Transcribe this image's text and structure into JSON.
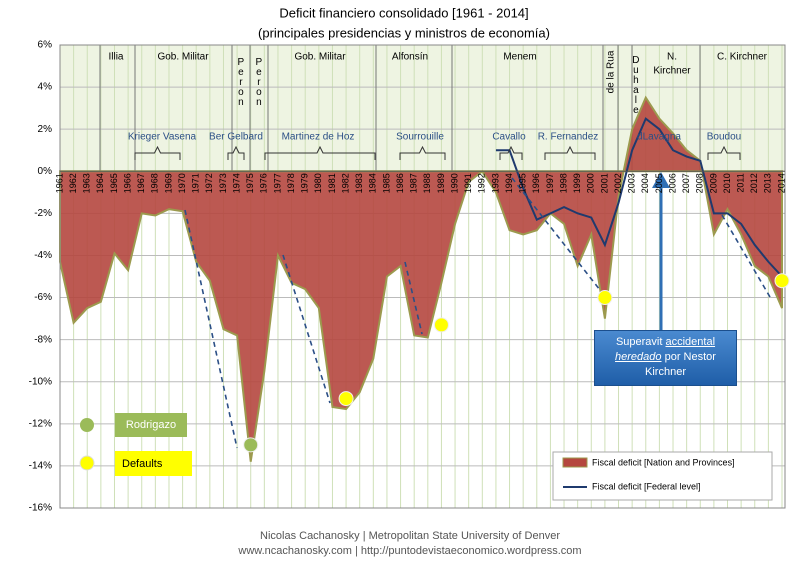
{
  "chart_data": {
    "type": "area",
    "title": "Deficit financiero consolidado [1961 - 2014]",
    "subtitle": "(principales presidencias y ministros de economía)",
    "categories": [
      "1961",
      "1962",
      "1963",
      "1964",
      "1965",
      "1966",
      "1967",
      "1968",
      "1969",
      "1970",
      "1971",
      "1972",
      "1973",
      "1974",
      "1975",
      "1976",
      "1977",
      "1978",
      "1979",
      "1980",
      "1981",
      "1982",
      "1983",
      "1984",
      "1985",
      "1986",
      "1987",
      "1988",
      "1989",
      "1990",
      "1991",
      "1992",
      "1993",
      "1994",
      "1995",
      "1996",
      "1997",
      "1998",
      "1999",
      "2000",
      "2001",
      "2002",
      "2003",
      "2004",
      "2005",
      "2006",
      "2007",
      "2008",
      "2009",
      "2010",
      "2011",
      "2012",
      "2013",
      "2014"
    ],
    "series": [
      {
        "name": "Fiscal deficit [Nation and Provinces]",
        "color": "#b5473f",
        "values": [
          -4.3,
          -7.2,
          -6.5,
          -6.2,
          -3.9,
          -4.7,
          -2.0,
          -2.1,
          -1.8,
          -1.9,
          -4.3,
          -5.2,
          -7.5,
          -7.8,
          -13.8,
          -9.5,
          -4.0,
          -5.3,
          -5.6,
          -6.5,
          -11.2,
          -11.3,
          -10.5,
          -8.9,
          -5.0,
          -4.5,
          -7.8,
          -7.9,
          -5.3,
          -2.5,
          -0.5,
          0.0,
          -1.0,
          -2.8,
          -3.0,
          -2.8,
          -2.0,
          -2.5,
          -4.5,
          -3.0,
          -7.0,
          -1.2,
          2.0,
          3.5,
          2.5,
          1.8,
          1.0,
          0.5,
          -3.0,
          -1.8,
          -3.0,
          -4.5,
          -5.0,
          -6.5
        ]
      },
      {
        "name": "Fiscal deficit [Federal level]",
        "color": "#1f3a6e",
        "values": [
          null,
          null,
          null,
          null,
          null,
          null,
          null,
          null,
          null,
          null,
          null,
          null,
          null,
          null,
          null,
          null,
          null,
          null,
          null,
          null,
          null,
          null,
          null,
          null,
          null,
          null,
          null,
          null,
          null,
          null,
          null,
          null,
          1.0,
          1.0,
          -0.8,
          -2.3,
          -2.0,
          -1.7,
          -2.0,
          -2.2,
          -3.5,
          -1.5,
          1.0,
          2.5,
          2.0,
          1.0,
          0.7,
          0.5,
          -2.0,
          -2.0,
          -2.5,
          -3.5,
          -4.3,
          -5.0
        ]
      }
    ],
    "ylim": [
      -16,
      6
    ],
    "yticks": [
      {
        "value": -16,
        "label": "-16%"
      },
      {
        "value": -14,
        "label": "-14%"
      },
      {
        "value": -12,
        "label": "-12%"
      },
      {
        "value": -10,
        "label": "-10%"
      },
      {
        "value": -8,
        "label": "-8%"
      },
      {
        "value": -6,
        "label": "-6%"
      },
      {
        "value": -4,
        "label": "-4%"
      },
      {
        "value": -2,
        "label": "-2%"
      },
      {
        "value": 0,
        "label": "0%"
      },
      {
        "value": 2,
        "label": "2%"
      },
      {
        "value": 4,
        "label": "4%"
      },
      {
        "value": 6,
        "label": "6%"
      }
    ],
    "grid": true,
    "rodrigazo": {
      "label": "Rodrigazo",
      "year": "1975",
      "value": -13.0
    },
    "defaults": {
      "label": "Defaults",
      "points": [
        {
          "year": "1982",
          "value": -10.8
        },
        {
          "year": "1989",
          "value": -7.3
        },
        {
          "year": "2001",
          "value": -6.0
        },
        {
          "year": "2014",
          "value": -5.2
        }
      ]
    },
    "presidencies": [
      "Illia",
      "Gob. Militar",
      "Peron",
      "Peron",
      "Gob. Militar",
      "Alfonsín",
      "Menem",
      "de la Rua",
      "Duhale",
      "N.",
      "Kirchner",
      "C. Kirchner"
    ],
    "ministers": [
      "Krieger Vasena",
      "Ber Gelbard",
      "Martinez de Hoz",
      "Sourrouille",
      "Cavallo",
      "R. Fernandez",
      "dLavagna",
      "Boudou"
    ],
    "annotation": [
      "Superavit",
      "accidental",
      "heredado",
      "por Nestor",
      "Kirchner"
    ],
    "footer": [
      "Nicolas Cachanosky | Metropolitan State University of Denver",
      "www.ncachanosky.com  | http://puntodevistaeconomico.wordpress.com"
    ]
  }
}
